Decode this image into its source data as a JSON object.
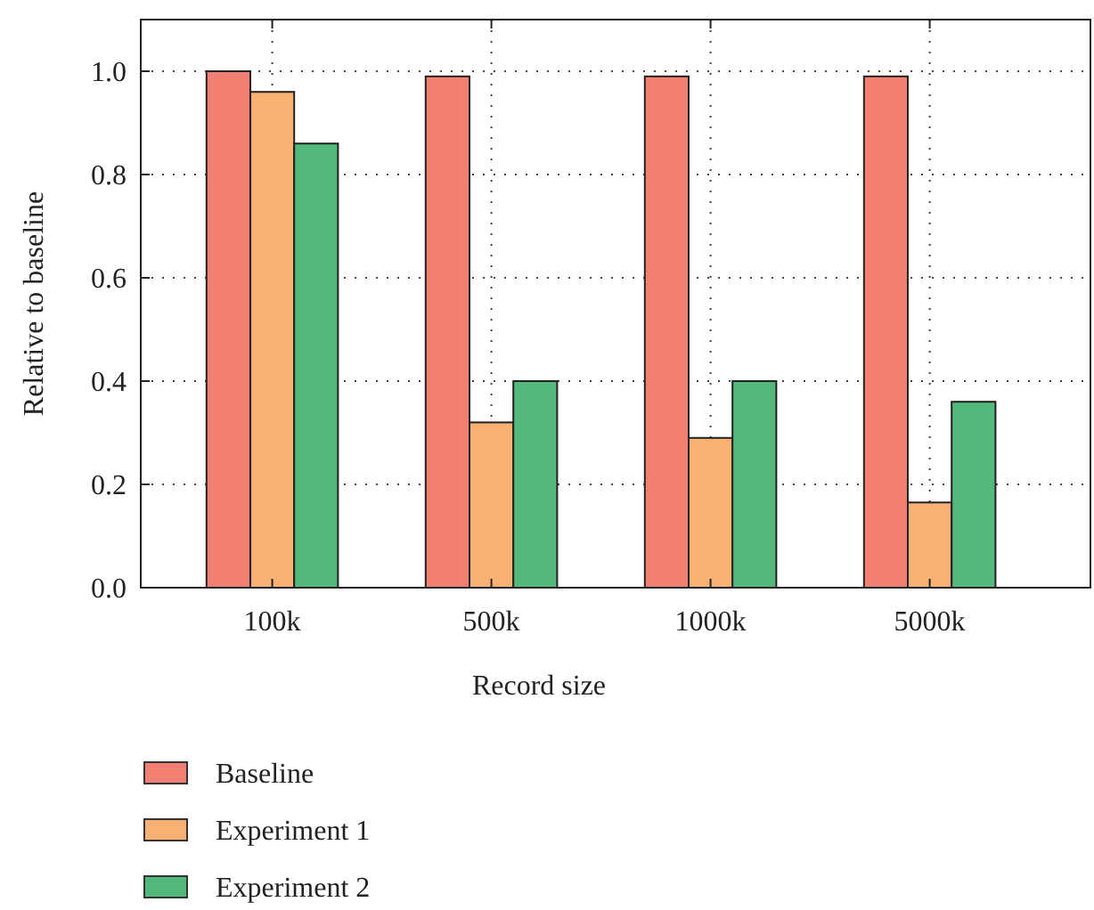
{
  "chart_data": {
    "type": "bar",
    "xlabel": "Record size",
    "ylabel": "Relative to baseline",
    "categories": [
      "100k",
      "500k",
      "1000k",
      "5000k"
    ],
    "series": [
      {
        "name": "Baseline",
        "color": "#f28072",
        "values": [
          1.0,
          0.99,
          0.99,
          0.99
        ]
      },
      {
        "name": "Experiment 1",
        "color": "#f9b073",
        "values": [
          0.96,
          0.32,
          0.29,
          0.165
        ]
      },
      {
        "name": "Experiment 2",
        "color": "#52b97b",
        "values": [
          0.86,
          0.4,
          0.4,
          0.36
        ]
      }
    ],
    "ylim": [
      0,
      1.1
    ],
    "yticks": [
      {
        "value": 0,
        "label": "0.0"
      },
      {
        "value": 0.2,
        "label": "0.2"
      },
      {
        "value": 0.4,
        "label": "0.4"
      },
      {
        "value": 0.6,
        "label": "0.6"
      },
      {
        "value": 0.8,
        "label": "0.8"
      },
      {
        "value": 1,
        "label": "1.0"
      }
    ],
    "grid": true,
    "legend": "bottom left"
  }
}
